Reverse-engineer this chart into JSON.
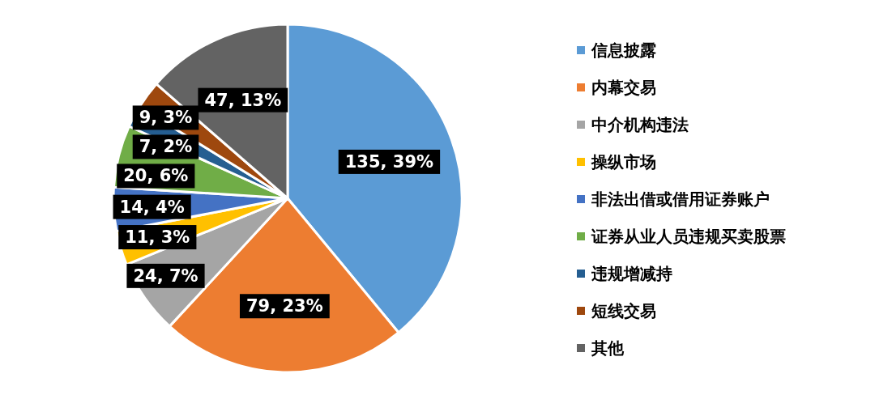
{
  "chart_data": {
    "type": "pie",
    "categories": [
      "信息披露",
      "内幕交易",
      "中介机构违法",
      "操纵市场",
      "非法出借或借用证券账户",
      "证券从业人员违规买卖股票",
      "违规增减持",
      "短线交易",
      "其他"
    ],
    "values": [
      135,
      79,
      24,
      11,
      14,
      20,
      7,
      9,
      47
    ],
    "colors": [
      "#5b9bd5",
      "#ed7d31",
      "#a5a5a5",
      "#ffc000",
      "#4472c4",
      "#70ad47",
      "#255e91",
      "#9e480e",
      "#636363"
    ],
    "value_labels": [
      "135, 39%",
      "79, 23%",
      "24, 7%",
      "11, 3%",
      "14, 4%",
      "20, 6%",
      "7, 2%",
      "9, 3%",
      "47, 13%"
    ],
    "legend": "right"
  }
}
